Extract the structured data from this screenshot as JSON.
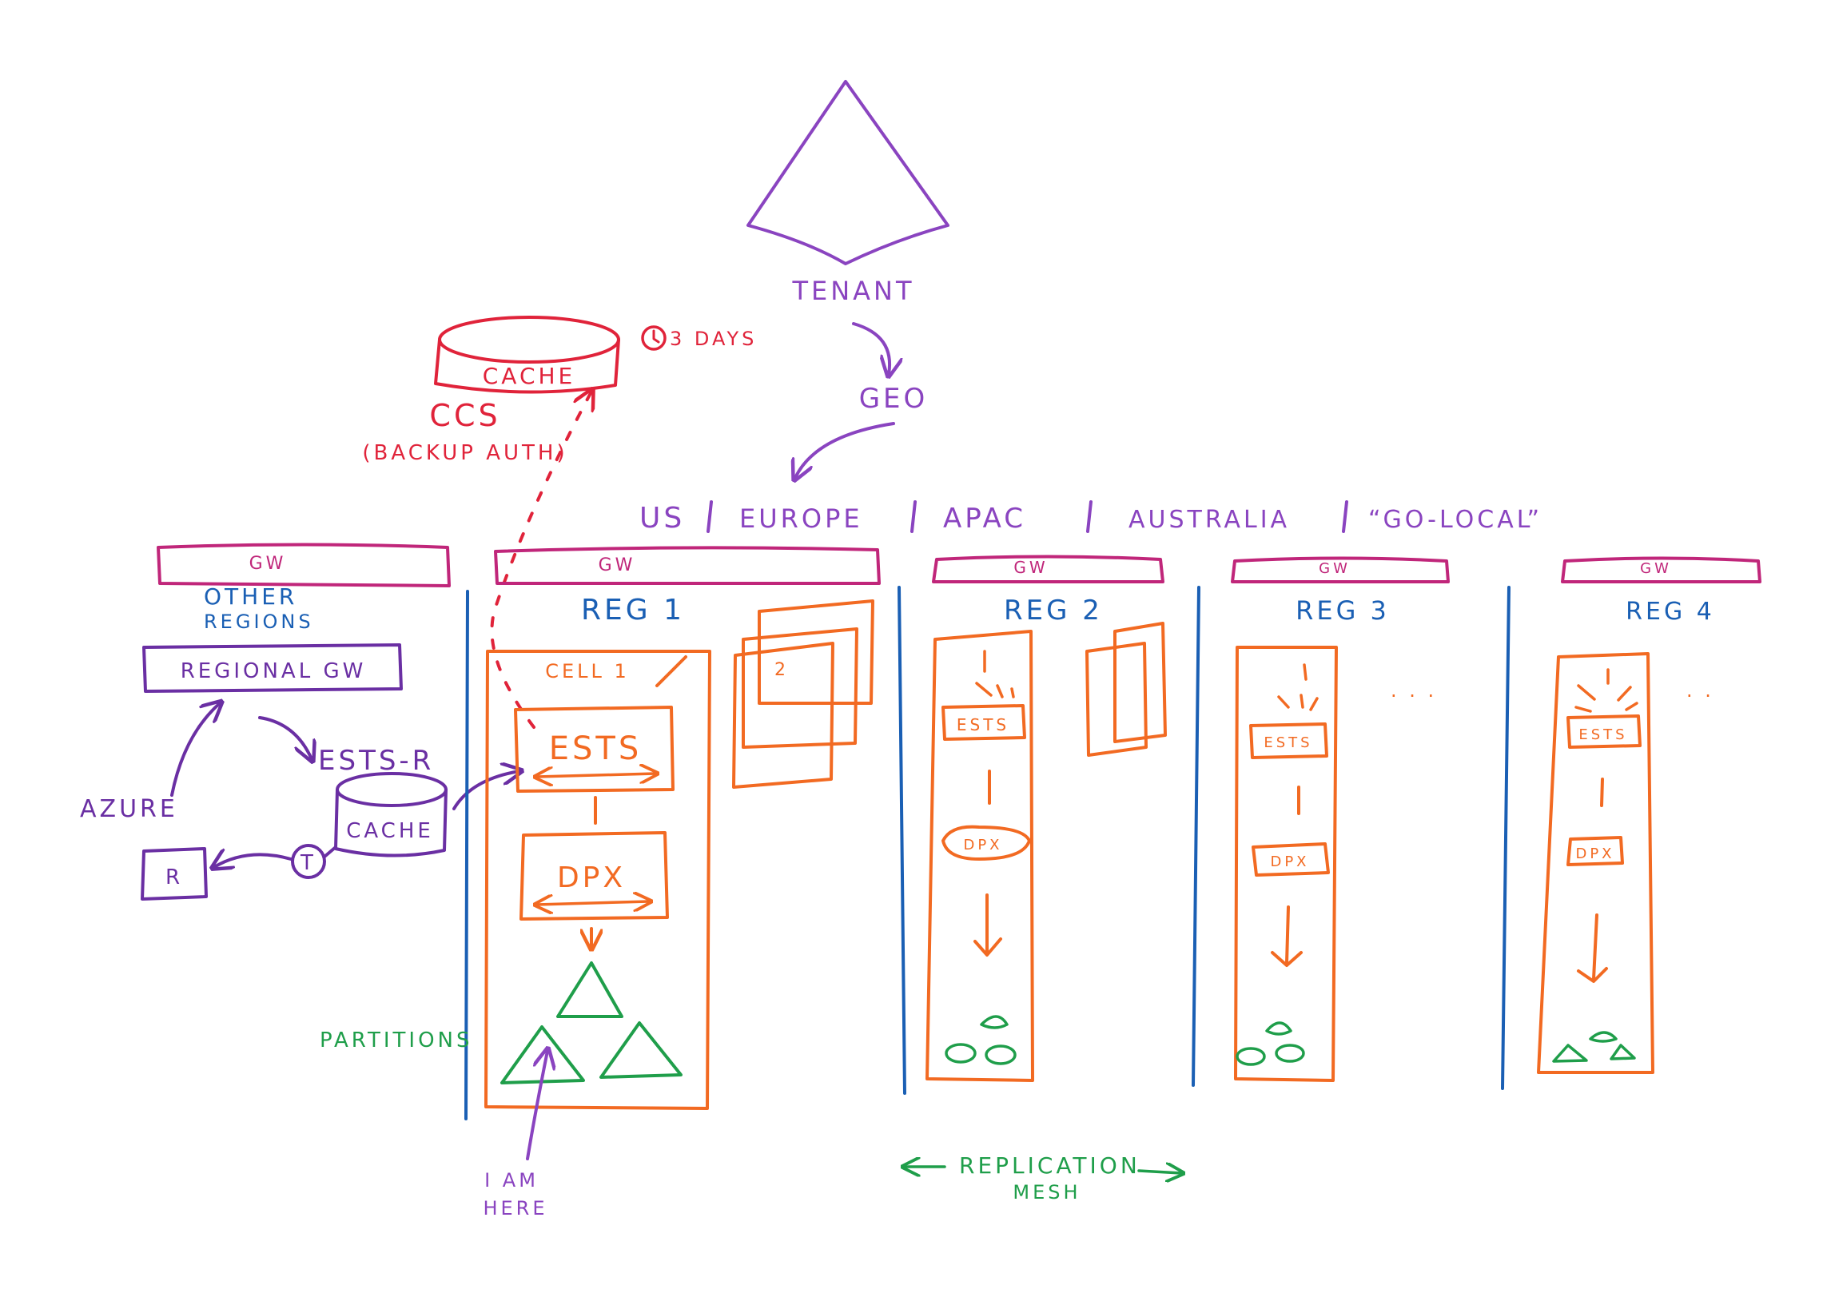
{
  "colors": {
    "purple": "#8a44c0",
    "red": "#e0233a",
    "magenta": "#c0267a",
    "blue": "#1a5fb4",
    "orange": "#f26a22",
    "green": "#1f9e4a",
    "dark_purple": "#6a2fa3"
  },
  "top": {
    "tenant": "TENANT",
    "geo": "GEO",
    "geos": [
      "US",
      "EUROPE",
      "APAC",
      "AUSTRALIA",
      "“GO-LOCAL”"
    ]
  },
  "ccs": {
    "cache": "CACHE",
    "name": "CCS",
    "subtitle": "(BACKUP AUTH)",
    "ttl_icon": "clock-icon",
    "ttl": "3 DAYS"
  },
  "left": {
    "gw": "GW",
    "other_regions_1": "OTHER",
    "other_regions_2": "REGIONS",
    "regional_gw": "REGIONAL GW",
    "ests_r": "ESTS-R",
    "azure": "AZURE",
    "cache": "CACHE",
    "t": "T",
    "r": "R"
  },
  "regions": [
    {
      "gw": "GW",
      "name": "REG 1",
      "cell": "CELL 1",
      "ests": "ESTS",
      "dpx": "DPX",
      "stack_label": "2"
    },
    {
      "gw": "GW",
      "name": "REG 2",
      "ests": "ESTS",
      "dpx": "DPX"
    },
    {
      "gw": "GW",
      "name": "REG 3",
      "ests": "ESTS",
      "dpx": "DPX",
      "ellipsis": ". . ."
    },
    {
      "gw": "GW",
      "name": "REG 4",
      "ests": "ESTS",
      "dpx": "DPX",
      "ellipsis": ". ."
    }
  ],
  "labels": {
    "partitions": "PARTITIONS",
    "i_am_1": "I AM",
    "i_am_2": "HERE",
    "replication_1": "REPLICATION",
    "replication_2": "MESH"
  }
}
